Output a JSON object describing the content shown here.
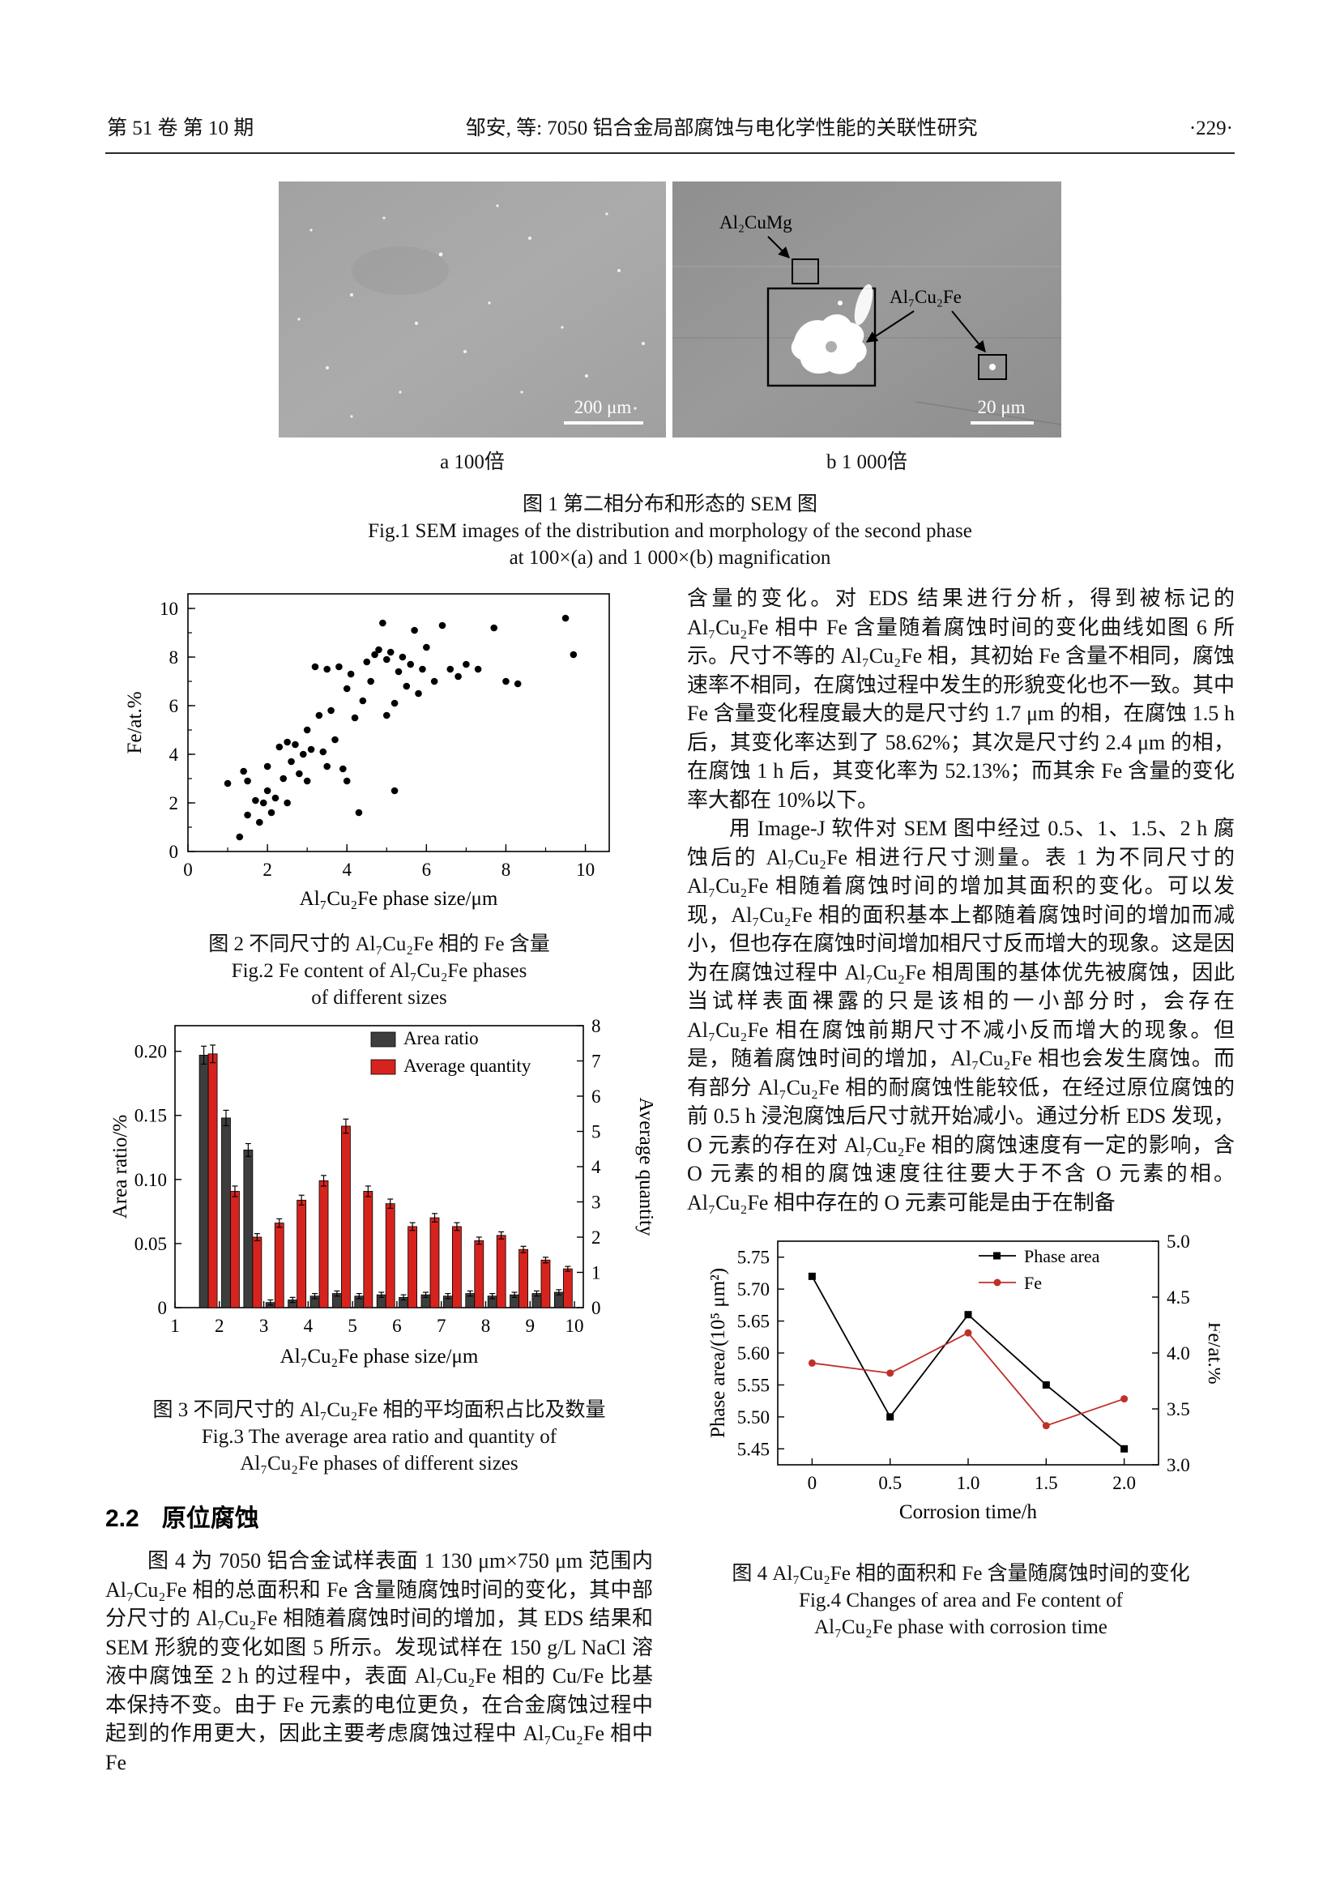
{
  "header": {
    "left": "第 51 卷  第 10 期",
    "center": "邹安, 等: 7050 铝合金局部腐蚀与电化学性能的关联性研究",
    "right": "·229·"
  },
  "figures": {
    "fig1": {
      "panel_a_label": "a 100倍",
      "panel_b_label": "b 1 000倍",
      "scalebar_a": "200 μm",
      "scalebar_b": "20 μm",
      "annotation_al2cumg": "Al₂CuMg",
      "annotation_al7cu2fe": "Al₇Cu₂Fe",
      "caption_cn": "图 1  第二相分布和形态的 SEM 图",
      "caption_en1": "Fig.1 SEM images of the distribution and morphology of the second phase",
      "caption_en2": "at 100×(a) and 1 000×(b) magnification"
    },
    "fig2": {
      "caption_cn": "图 2  不同尺寸的 Al₇Cu₂Fe 相的 Fe 含量",
      "caption_en1": "Fig.2 Fe content of Al₇Cu₂Fe phases",
      "caption_en2": "of different sizes"
    },
    "fig3": {
      "caption_cn": "图 3  不同尺寸的 Al₇Cu₂Fe 相的平均面积占比及数量",
      "caption_en1": "Fig.3 The average area ratio and quantity of",
      "caption_en2": "Al₇Cu₂Fe phases of different sizes"
    },
    "fig4": {
      "caption_cn": "图 4  Al₇Cu₂Fe 相的面积和 Fe 含量随腐蚀时间的变化",
      "caption_en1": "Fig.4 Changes of area and Fe content of",
      "caption_en2": "Al₇Cu₂Fe phase with corrosion time"
    }
  },
  "section_2_2": {
    "number": "2.2",
    "title": "原位腐蚀"
  },
  "paragraphs": {
    "right_col_p1": "含量的变化。对 EDS 结果进行分析，得到被标记的 Al₇Cu₂Fe 相中 Fe 含量随着腐蚀时间的变化曲线如图 6 所示。尺寸不等的 Al₇Cu₂Fe 相，其初始 Fe 含量不相同，腐蚀速率不相同，在腐蚀过程中发生的形貌变化也不一致。其中 Fe 含量变化程度最大的是尺寸约 1.7 μm 的相，在腐蚀 1.5 h 后，其变化率达到了 58.62%；其次是尺寸约 2.4 μm 的相，在腐蚀 1 h 后，其变化率为 52.13%；而其余 Fe 含量的变化率大都在 10%以下。",
    "right_col_p2": "用 Image-J 软件对 SEM 图中经过 0.5、1、1.5、2 h 腐蚀后的 Al₇Cu₂Fe 相进行尺寸测量。表 1 为不同尺寸的 Al₇Cu₂Fe 相随着腐蚀时间的增加其面积的变化。可以发现，Al₇Cu₂Fe 相的面积基本上都随着腐蚀时间的增加而减小，但也存在腐蚀时间增加相尺寸反而增大的现象。这是因为在腐蚀过程中 Al₇Cu₂Fe 相周围的基体优先被腐蚀，因此当试样表面裸露的只是该相的一小部分时，会存在 Al₇Cu₂Fe 相在腐蚀前期尺寸不减小反而增大的现象。但是，随着腐蚀时间的增加，Al₇Cu₂Fe 相也会发生腐蚀。而有部分 Al₇Cu₂Fe 相的耐腐蚀性能较低，在经过原位腐蚀的前 0.5 h 浸泡腐蚀后尺寸就开始减小。通过分析 EDS 发现，O 元素的存在对 Al₇Cu₂Fe 相的腐蚀速度有一定的影响，含 O 元素的相的腐蚀速度往往要大于不含 O 元素的相。Al₇Cu₂Fe 相中存在的 O 元素可能是由于在制备",
    "left_col": "图 4 为 7050 铝合金试样表面 1 130 μm×750 μm 范围内 Al₇Cu₂Fe 相的总面积和 Fe 含量随腐蚀时间的变化，其中部分尺寸的 Al₇Cu₂Fe 相随着腐蚀时间的增加，其 EDS 结果和 SEM 形貌的变化如图 5 所示。发现试样在 150 g/L NaCl 溶液中腐蚀至 2 h 的过程中，表面 Al₇Cu₂Fe 相的 Cu/Fe 比基本保持不变。由于 Fe 元素的电位更负，在合金腐蚀过程中起到的作用更大，因此主要考虑腐蚀过程中 Al₇Cu₂Fe 相中 Fe"
  },
  "colors": {
    "bar_gray": "#3d3d3d",
    "bar_red": "#d7231d",
    "line_black": "#000000",
    "line_red": "#c0302a"
  },
  "chart_data": [
    {
      "id": "fig2",
      "type": "scatter",
      "title": "不同尺寸的 Al₇Cu₂Fe 相的 Fe 含量",
      "xlabel": "Al₇Cu₂Fe phase size/μm",
      "ylabel": "Fe/at.%",
      "xlim": [
        0,
        10.6
      ],
      "ylim": [
        0,
        10.6
      ],
      "xticks": {
        "values": [
          0,
          2,
          4,
          6,
          8,
          10
        ],
        "labels": [
          "0",
          "2",
          "4",
          "6",
          "8",
          "10"
        ]
      },
      "yticks": {
        "values": [
          0,
          2,
          4,
          6,
          8,
          10
        ],
        "labels": [
          "0",
          "2",
          "4",
          "6",
          "8",
          "10"
        ]
      },
      "points": [
        [
          1.0,
          2.8
        ],
        [
          1.3,
          0.6
        ],
        [
          1.4,
          3.3
        ],
        [
          1.5,
          1.5
        ],
        [
          1.5,
          2.9
        ],
        [
          1.7,
          2.1
        ],
        [
          1.8,
          1.2
        ],
        [
          1.9,
          2.0
        ],
        [
          2.0,
          3.5
        ],
        [
          2.0,
          2.5
        ],
        [
          2.1,
          1.6
        ],
        [
          2.2,
          2.2
        ],
        [
          2.3,
          4.3
        ],
        [
          2.4,
          3.0
        ],
        [
          2.5,
          2.0
        ],
        [
          2.5,
          4.5
        ],
        [
          2.6,
          3.7
        ],
        [
          2.7,
          4.4
        ],
        [
          2.8,
          3.2
        ],
        [
          2.9,
          4.0
        ],
        [
          3.0,
          2.9
        ],
        [
          3.0,
          5.0
        ],
        [
          3.1,
          4.2
        ],
        [
          3.2,
          7.6
        ],
        [
          3.3,
          5.6
        ],
        [
          3.4,
          4.1
        ],
        [
          3.5,
          7.5
        ],
        [
          3.5,
          3.5
        ],
        [
          3.6,
          5.8
        ],
        [
          3.7,
          4.6
        ],
        [
          3.8,
          7.6
        ],
        [
          3.9,
          3.4
        ],
        [
          4.0,
          2.9
        ],
        [
          4.0,
          6.7
        ],
        [
          4.1,
          7.3
        ],
        [
          4.2,
          5.5
        ],
        [
          4.3,
          1.6
        ],
        [
          4.4,
          6.2
        ],
        [
          4.5,
          7.8
        ],
        [
          4.6,
          7.0
        ],
        [
          4.7,
          8.1
        ],
        [
          4.8,
          8.3
        ],
        [
          4.9,
          9.4
        ],
        [
          5.0,
          7.9
        ],
        [
          5.0,
          5.6
        ],
        [
          5.1,
          8.2
        ],
        [
          5.2,
          6.1
        ],
        [
          5.2,
          2.5
        ],
        [
          5.3,
          7.4
        ],
        [
          5.4,
          8.0
        ],
        [
          5.5,
          6.8
        ],
        [
          5.6,
          7.7
        ],
        [
          5.7,
          9.1
        ],
        [
          5.8,
          6.5
        ],
        [
          5.9,
          7.5
        ],
        [
          6.0,
          8.4
        ],
        [
          6.2,
          7.0
        ],
        [
          6.4,
          9.3
        ],
        [
          6.6,
          7.5
        ],
        [
          6.8,
          7.2
        ],
        [
          7.0,
          7.7
        ],
        [
          7.3,
          7.5
        ],
        [
          7.7,
          9.2
        ],
        [
          8.0,
          7.0
        ],
        [
          8.3,
          6.9
        ],
        [
          9.5,
          9.6
        ],
        [
          9.7,
          8.1
        ]
      ]
    },
    {
      "id": "fig3",
      "type": "bar",
      "title": "不同尺寸的 Al₇Cu₂Fe 相的平均面积占比及数量",
      "xlabel": "Al₇Cu₂Fe phase size/μm",
      "ylabel_left": "Area ratio/%",
      "ylabel_right": "Average quantity",
      "xlim": [
        1,
        10.2
      ],
      "ylim_left": [
        0,
        0.22
      ],
      "ylim_right": [
        0,
        8
      ],
      "xticks": {
        "values": [
          1,
          2,
          3,
          4,
          5,
          6,
          7,
          8,
          9,
          10
        ],
        "labels": [
          "1",
          "2",
          "3",
          "4",
          "5",
          "6",
          "7",
          "8",
          "9",
          "10"
        ]
      },
      "yticks_left": {
        "values": [
          0,
          0.05,
          0.1,
          0.15,
          0.2
        ],
        "labels": [
          "0",
          "0.05",
          "0.10",
          "0.15",
          "0.20"
        ]
      },
      "yticks_right": {
        "values": [
          0,
          1,
          2,
          3,
          4,
          5,
          6,
          7,
          8
        ],
        "labels": [
          "0",
          "1",
          "2",
          "3",
          "4",
          "5",
          "6",
          "7",
          "8"
        ]
      },
      "categories": [
        1.75,
        2.25,
        2.75,
        3.25,
        3.75,
        4.25,
        4.75,
        5.25,
        5.75,
        6.25,
        6.75,
        7.25,
        7.75,
        8.25,
        8.75,
        9.25,
        9.75
      ],
      "series": [
        {
          "name": "Area ratio",
          "axis": "left",
          "color": "#3d3d3d",
          "values": [
            0.197,
            0.148,
            0.123,
            0.004,
            0.006,
            0.009,
            0.011,
            0.009,
            0.01,
            0.008,
            0.01,
            0.009,
            0.011,
            0.009,
            0.01,
            0.011,
            0.012
          ],
          "errors": [
            0.007,
            0.006,
            0.005,
            0.002,
            0.002,
            0.002,
            0.002,
            0.002,
            0.002,
            0.002,
            0.002,
            0.002,
            0.002,
            0.002,
            0.002,
            0.002,
            0.002
          ]
        },
        {
          "name": "Average quantity",
          "axis": "right",
          "color": "#d7231d",
          "values": [
            7.2,
            3.3,
            2.0,
            2.4,
            3.05,
            3.6,
            5.15,
            3.3,
            2.95,
            2.3,
            2.55,
            2.3,
            1.9,
            2.05,
            1.65,
            1.35,
            1.1
          ],
          "errors": [
            0.25,
            0.15,
            0.1,
            0.12,
            0.14,
            0.15,
            0.2,
            0.15,
            0.13,
            0.11,
            0.12,
            0.11,
            0.1,
            0.1,
            0.09,
            0.08,
            0.07
          ]
        }
      ],
      "legend_position": "top-right"
    },
    {
      "id": "fig4",
      "type": "line",
      "title": "Al₇Cu₂Fe 相的面积和 Fe 含量随腐蚀时间的变化",
      "xlabel": "Corrosion time/h",
      "ylabel_left": "Phase area/(10⁵ μm²)",
      "ylabel_right": "Fe/at.%",
      "x": [
        0,
        0.5,
        1.0,
        1.5,
        2.0
      ],
      "xlim": [
        -0.22,
        2.22
      ],
      "ylim_left": [
        5.425,
        5.775
      ],
      "ylim_right": [
        3.0,
        5.0
      ],
      "xticks": {
        "values": [
          0,
          0.5,
          1.0,
          1.5,
          2.0
        ],
        "labels": [
          "0",
          "0.5",
          "1.0",
          "1.5",
          "2.0"
        ]
      },
      "yticks_left": {
        "values": [
          5.45,
          5.5,
          5.55,
          5.6,
          5.65,
          5.7,
          5.75
        ],
        "labels": [
          "5.45",
          "5.50",
          "5.55",
          "5.60",
          "5.65",
          "5.70",
          "5.75"
        ]
      },
      "yticks_right": {
        "values": [
          3.0,
          3.5,
          4.0,
          4.5,
          5.0
        ],
        "labels": [
          "3.0",
          "3.5",
          "4.0",
          "4.5",
          "5.0"
        ]
      },
      "series": [
        {
          "name": "Phase area",
          "axis": "left",
          "color": "#000000",
          "marker": "square",
          "values": [
            5.72,
            5.5,
            5.66,
            5.55,
            5.45
          ]
        },
        {
          "name": "Fe",
          "axis": "right",
          "color": "#c0302a",
          "marker": "circle",
          "values": [
            3.91,
            3.82,
            4.18,
            3.35,
            3.59
          ]
        }
      ],
      "legend_position": "top-right"
    }
  ]
}
